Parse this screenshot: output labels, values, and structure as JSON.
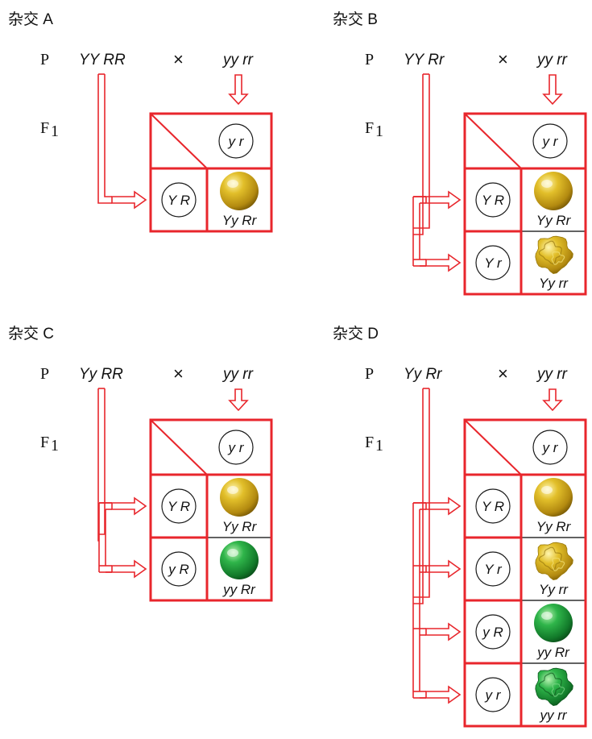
{
  "colors": {
    "accent_red": "#e8262c",
    "grid_black": "#1a1a1a",
    "pea_yellow": "#d6b21f",
    "pea_green": "#1c9a3c"
  },
  "labels": {
    "p": "P",
    "f1": "F",
    "f1_sub": "1",
    "cross": "×"
  },
  "panels": [
    {
      "title": "杂交 A",
      "parent1": "YY RR",
      "parent2": "yy rr",
      "top_gamete": "y r",
      "rows": [
        {
          "gamete": "Y R",
          "genotype": "Yy Rr",
          "pea": "yellow-round-pea-icon"
        }
      ]
    },
    {
      "title": "杂交 B",
      "parent1": "YY Rr",
      "parent2": "yy rr",
      "top_gamete": "y r",
      "rows": [
        {
          "gamete": "Y R",
          "genotype": "Yy Rr",
          "pea": "yellow-round-pea-icon"
        },
        {
          "gamete": "Y r",
          "genotype": "Yy rr",
          "pea": "yellow-wrinkled-pea-icon"
        }
      ]
    },
    {
      "title": "杂交 C",
      "parent1": "Yy RR",
      "parent2": "yy rr",
      "top_gamete": "y r",
      "rows": [
        {
          "gamete": "Y R",
          "genotype": "Yy Rr",
          "pea": "yellow-round-pea-icon"
        },
        {
          "gamete": "y R",
          "genotype": "yy Rr",
          "pea": "green-round-pea-icon"
        }
      ]
    },
    {
      "title": "杂交 D",
      "parent1": "Yy Rr",
      "parent2": "yy rr",
      "top_gamete": "y r",
      "rows": [
        {
          "gamete": "Y R",
          "genotype": "Yy Rr",
          "pea": "yellow-round-pea-icon"
        },
        {
          "gamete": "Y r",
          "genotype": "Yy rr",
          "pea": "yellow-wrinkled-pea-icon"
        },
        {
          "gamete": "y R",
          "genotype": "yy Rr",
          "pea": "green-round-pea-icon"
        },
        {
          "gamete": "y r",
          "genotype": "yy rr",
          "pea": "green-wrinkled-pea-icon"
        }
      ]
    }
  ]
}
